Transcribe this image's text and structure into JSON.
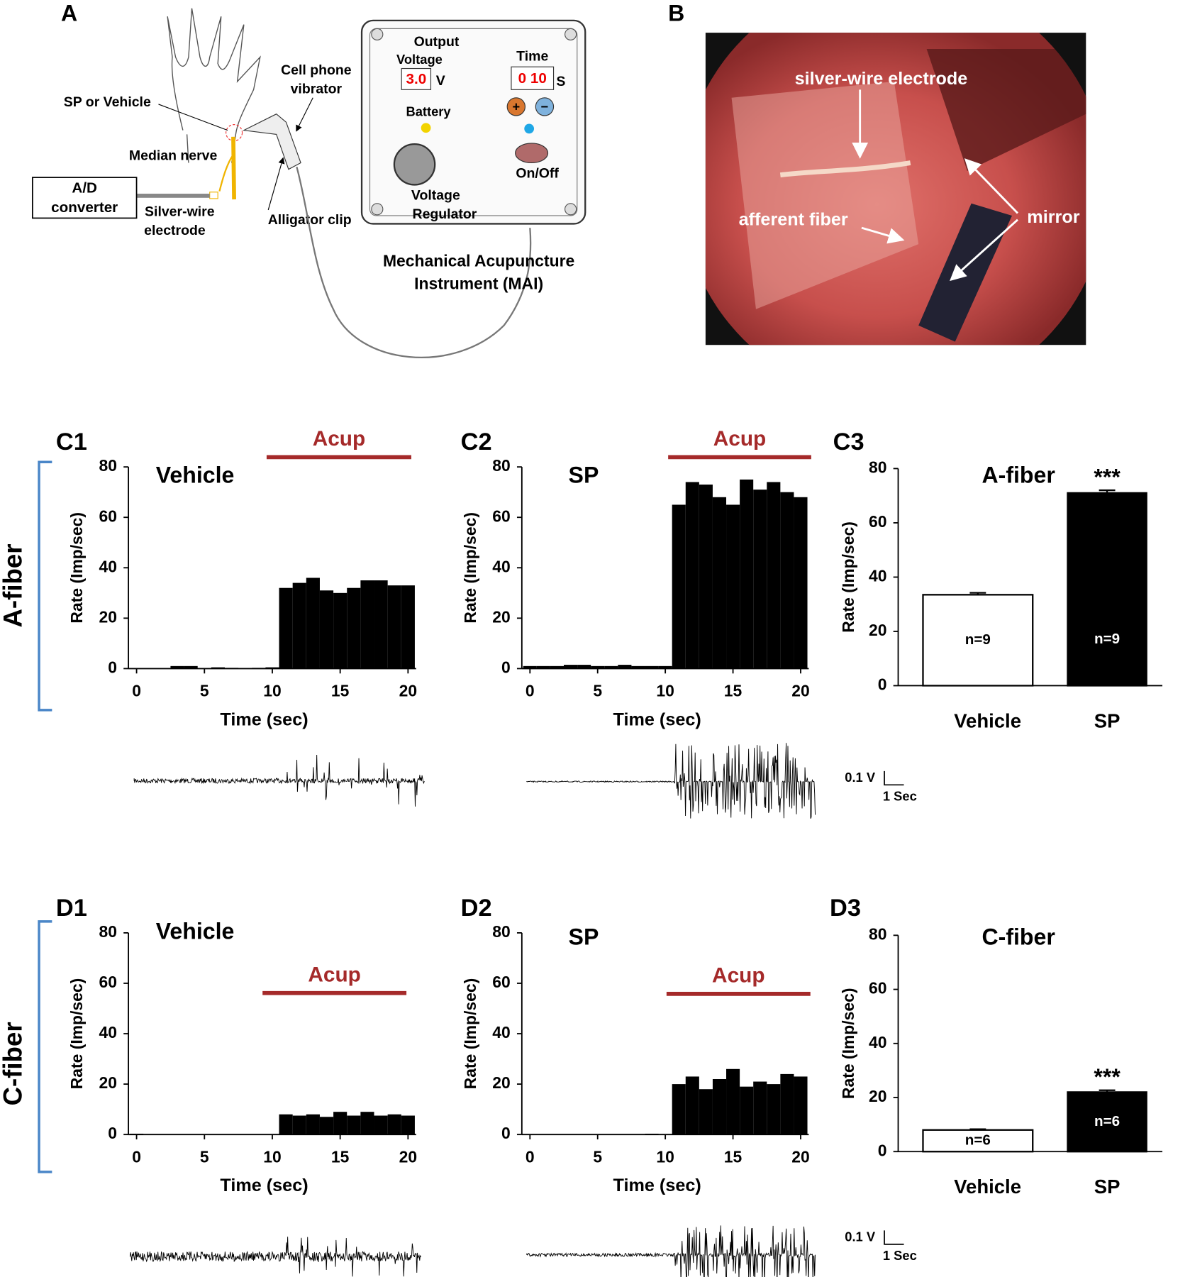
{
  "panel_labels": {
    "A": "A",
    "B": "B",
    "C1": "C1",
    "C2": "C2",
    "C3": "C3",
    "D1": "D1",
    "D2": "D2",
    "D3": "D3"
  },
  "row_labels": [
    "A-fiber",
    "C-fiber"
  ],
  "diagram": {
    "sp_or_vehicle": "SP or Vehicle",
    "median_nerve": "Median nerve",
    "ad_converter": [
      "A/D",
      "converter"
    ],
    "silver_wire": [
      "Silver-wire",
      "electrode"
    ],
    "cell_phone": [
      "Cell phone",
      "vibrator"
    ],
    "alligator_clip": "Alligator clip",
    "output": "Output",
    "voltage": "Voltage",
    "voltage_display": "3.0",
    "voltage_unit": "V",
    "time": "Time",
    "time_display": "0 10",
    "time_unit": "S",
    "battery": "Battery",
    "plus": "+",
    "minus": "−",
    "on_off": "On/Off",
    "regulator": [
      "Voltage",
      "Regulator"
    ],
    "instrument": [
      "Mechanical Acupuncture",
      "Instrument (MAI)"
    ]
  },
  "photo": {
    "electrode": "silver-wire electrode",
    "fiber": "afferent fiber",
    "mirror": "mirror"
  },
  "chart_data": [
    {
      "type": "histogram",
      "title": "Vehicle",
      "xlabel": "Time (sec)",
      "ylabel": "Rate (Imp/sec)",
      "annotation": "Acup",
      "annotation_color": "#a52a2a",
      "color": "#000000",
      "bins": [
        -0.5,
        0.5,
        1.5,
        2.5,
        3.5,
        4.5,
        5.5,
        6.5,
        7.5,
        8.5,
        9.5,
        10.5,
        11.5,
        12.5,
        13.5,
        14.5,
        15.5,
        16.5,
        17.5,
        18.5,
        19.5,
        20.5
      ],
      "counts": [
        0,
        0,
        0,
        1,
        1,
        0,
        0.5,
        0.3,
        0,
        0.3,
        0.5,
        32,
        34,
        36,
        31,
        30,
        32,
        35,
        35,
        33,
        33
      ],
      "xlim": [
        -0.6,
        20.6
      ],
      "ylim": [
        0,
        80
      ],
      "xticks": [
        0,
        5,
        10,
        15,
        20
      ],
      "yticks": [
        0,
        20,
        40,
        60,
        80
      ]
    },
    {
      "type": "histogram",
      "title": "SP",
      "xlabel": "Time (sec)",
      "ylabel": "Rate (Imp/sec)",
      "annotation": "Acup",
      "annotation_color": "#a52a2a",
      "color": "#000000",
      "bins": [
        -0.5,
        0.5,
        1.5,
        2.5,
        3.5,
        4.5,
        5.5,
        6.5,
        7.5,
        8.5,
        9.5,
        10.5,
        11.5,
        12.5,
        13.5,
        14.5,
        15.5,
        16.5,
        17.5,
        18.5,
        19.5,
        20.5
      ],
      "counts": [
        1,
        1,
        1,
        1.5,
        1.5,
        1,
        1,
        1.5,
        1,
        1,
        1,
        65,
        74,
        73,
        68,
        65,
        75,
        71,
        74,
        70,
        68
      ],
      "xlim": [
        -0.6,
        20.6
      ],
      "ylim": [
        0,
        80
      ],
      "xticks": [
        0,
        5,
        10,
        15,
        20
      ],
      "yticks": [
        0,
        20,
        40,
        60,
        80
      ]
    },
    {
      "type": "bar",
      "title": "A-fiber",
      "ylabel": "Rate (Imp/sec)",
      "categories": [
        "Vehicle",
        "SP"
      ],
      "values": [
        33.5,
        71
      ],
      "errors": [
        0.7,
        1
      ],
      "colors": [
        "#ffffff",
        "#000000"
      ],
      "annotations": [
        "n=9",
        "n=9"
      ],
      "significance": "***",
      "ylim": [
        0,
        80
      ],
      "yticks": [
        0,
        20,
        40,
        60,
        80
      ]
    },
    {
      "type": "histogram",
      "title": "Vehicle",
      "xlabel": "Time (sec)",
      "ylabel": "Rate (Imp/sec)",
      "annotation": "Acup",
      "annotation_color": "#a52a2a",
      "color": "#000000",
      "bins": [
        -0.5,
        0.5,
        1.5,
        2.5,
        3.5,
        4.5,
        5.5,
        6.5,
        7.5,
        8.5,
        9.5,
        10.5,
        11.5,
        12.5,
        13.5,
        14.5,
        15.5,
        16.5,
        17.5,
        18.5,
        19.5,
        20.5
      ],
      "counts": [
        0.3,
        0,
        0,
        0,
        0,
        0,
        0,
        0,
        0,
        0,
        0,
        8,
        7.5,
        8,
        7,
        9,
        7.5,
        9,
        7.5,
        8,
        7.5
      ],
      "xlim": [
        -0.6,
        20.6
      ],
      "ylim": [
        0,
        80
      ],
      "xticks": [
        0,
        5,
        10,
        15,
        20
      ],
      "yticks": [
        0,
        20,
        40,
        60,
        80
      ]
    },
    {
      "type": "histogram",
      "title": "SP",
      "xlabel": "Time (sec)",
      "ylabel": "Rate (Imp/sec)",
      "annotation": "Acup",
      "annotation_color": "#a52a2a",
      "color": "#000000",
      "bins": [
        -0.5,
        0.5,
        1.5,
        2.5,
        3.5,
        4.5,
        5.5,
        6.5,
        7.5,
        8.5,
        9.5,
        10.5,
        11.5,
        12.5,
        13.5,
        14.5,
        15.5,
        16.5,
        17.5,
        18.5,
        19.5,
        20.5
      ],
      "counts": [
        0,
        0,
        0,
        0,
        0,
        0,
        0,
        0,
        0,
        0.3,
        0,
        20,
        23,
        18,
        22,
        26,
        19,
        21,
        20,
        24,
        23
      ],
      "xlim": [
        -0.6,
        20.6
      ],
      "ylim": [
        0,
        80
      ],
      "xticks": [
        0,
        5,
        10,
        15,
        20
      ],
      "yticks": [
        0,
        20,
        40,
        60,
        80
      ]
    },
    {
      "type": "bar",
      "title": "C-fiber",
      "ylabel": "Rate (Imp/sec)",
      "categories": [
        "Vehicle",
        "SP"
      ],
      "values": [
        8,
        22
      ],
      "errors": [
        0.3,
        0.7
      ],
      "colors": [
        "#ffffff",
        "#000000"
      ],
      "annotations": [
        "n=6",
        "n=6"
      ],
      "significance": "***",
      "ylim": [
        0,
        80
      ],
      "yticks": [
        0,
        20,
        40,
        60,
        80
      ]
    }
  ],
  "trace_scale": [
    {
      "voltage": "0.1 V",
      "time": "1 Sec"
    },
    {
      "voltage": "0.1 V",
      "time": "1 Sec"
    }
  ]
}
